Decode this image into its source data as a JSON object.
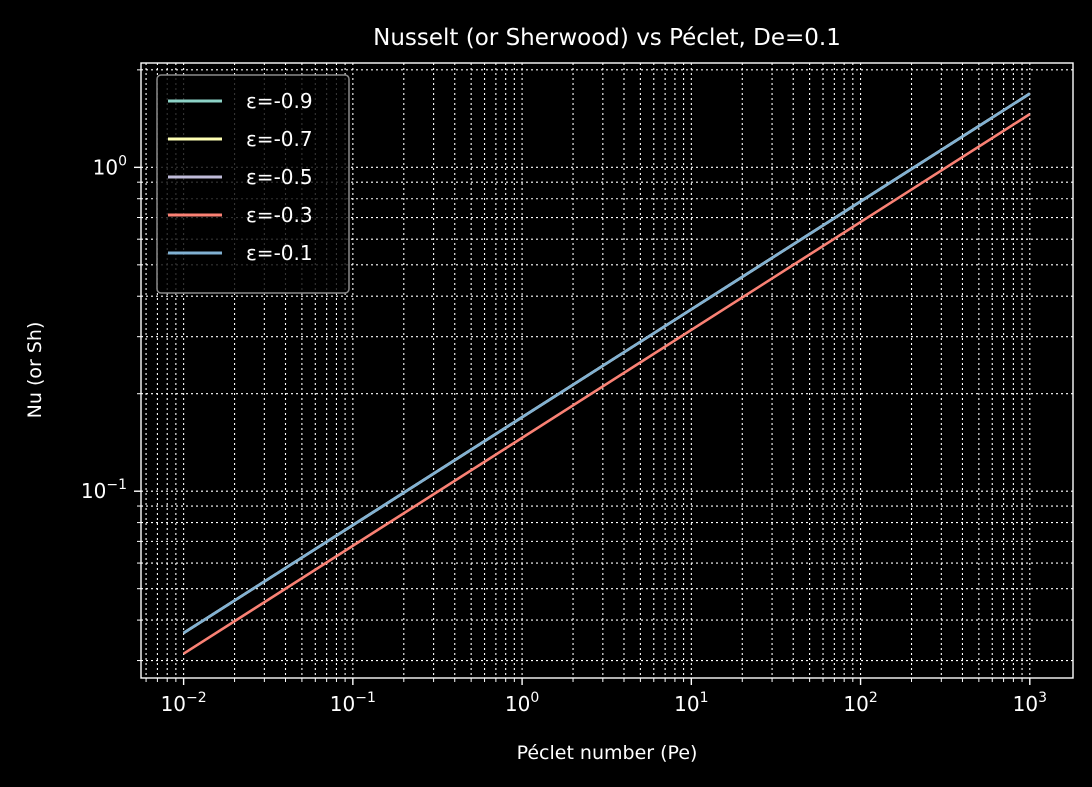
{
  "chart_data": {
    "type": "line",
    "title": "Nusselt (or Sherwood) vs Péclet, De=0.1",
    "xlabel": "Péclet number (Pe)",
    "ylabel": "Nu (or Sh)",
    "xscale": "log",
    "yscale": "log",
    "xlim": [
      0.0056,
      1800
    ],
    "ylim": [
      0.0265,
      2.1
    ],
    "grid": true,
    "grid_style": "dotted",
    "legend_position": "top-left",
    "x_ticks": [
      {
        "value": 0.01,
        "base": "10",
        "exp": "−2"
      },
      {
        "value": 0.1,
        "base": "10",
        "exp": "−1"
      },
      {
        "value": 1,
        "base": "10",
        "exp": "0"
      },
      {
        "value": 10,
        "base": "10",
        "exp": "1"
      },
      {
        "value": 100,
        "base": "10",
        "exp": "2"
      },
      {
        "value": 1000,
        "base": "10",
        "exp": "3"
      }
    ],
    "y_ticks": [
      {
        "value": 0.1,
        "base": "10",
        "exp": "−1"
      },
      {
        "value": 1,
        "base": "10",
        "exp": "0"
      }
    ],
    "series": [
      {
        "name": "ε=-0.9",
        "color": "#8dd3c7",
        "x": [
          0.01,
          1000
        ],
        "y": [
          0.0365,
          1.69
        ]
      },
      {
        "name": "ε=-0.7",
        "color": "#feffb3",
        "x": [
          0.01,
          1000
        ],
        "y": [
          0.0365,
          1.69
        ]
      },
      {
        "name": "ε=-0.5",
        "color": "#bfbbd9",
        "x": [
          0.01,
          1000
        ],
        "y": [
          0.0365,
          1.69
        ]
      },
      {
        "name": "ε=-0.3",
        "color": "#fa8174",
        "x": [
          0.01,
          1000
        ],
        "y": [
          0.0315,
          1.46
        ]
      },
      {
        "name": "ε=-0.1",
        "color": "#81b1d2",
        "x": [
          0.01,
          1000
        ],
        "y": [
          0.0365,
          1.69
        ]
      }
    ]
  }
}
